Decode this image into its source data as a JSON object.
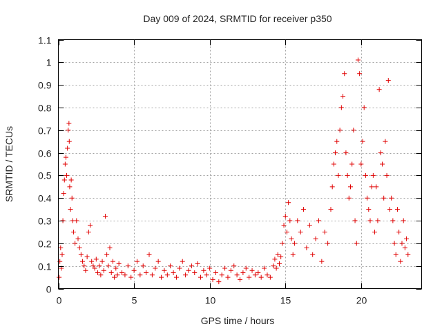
{
  "chart_data": {
    "type": "scatter",
    "title": "Day 009 of 2024, SRMTID for receiver p350",
    "xlabel": "GPS time / hours",
    "ylabel": "SRMTID / TECUs",
    "xlim": [
      0,
      24
    ],
    "ylim": [
      0,
      1.1
    ],
    "xticks": [
      0,
      5,
      10,
      15,
      20
    ],
    "xtick_labels": [
      "0",
      "5",
      "10",
      "15",
      "20"
    ],
    "yticks": [
      0,
      0.1,
      0.2,
      0.3,
      0.4,
      0.5,
      0.6,
      0.7,
      0.8,
      0.9,
      1.0,
      1.1
    ],
    "ytick_labels": [
      "0",
      "0.1",
      "0.2",
      "0.3",
      "0.4",
      "0.5",
      "0.6",
      "0.7",
      "0.8",
      "0.9",
      "1",
      "1.1"
    ],
    "grid": true,
    "marker": "+",
    "series_color": "#e00000",
    "series": [
      {
        "name": "p350",
        "points": [
          [
            0.05,
            0.05
          ],
          [
            0.1,
            0.12
          ],
          [
            0.15,
            0.18
          ],
          [
            0.2,
            0.09
          ],
          [
            0.25,
            0.15
          ],
          [
            0.3,
            0.3
          ],
          [
            0.35,
            0.42
          ],
          [
            0.4,
            0.48
          ],
          [
            0.45,
            0.55
          ],
          [
            0.5,
            0.58
          ],
          [
            0.55,
            0.5
          ],
          [
            0.6,
            0.62
          ],
          [
            0.65,
            0.7
          ],
          [
            0.7,
            0.73
          ],
          [
            0.72,
            0.65
          ],
          [
            0.75,
            0.45
          ],
          [
            0.8,
            0.35
          ],
          [
            0.85,
            0.48
          ],
          [
            0.9,
            0.4
          ],
          [
            0.95,
            0.3
          ],
          [
            1.0,
            0.25
          ],
          [
            1.1,
            0.2
          ],
          [
            1.2,
            0.3
          ],
          [
            1.3,
            0.22
          ],
          [
            1.4,
            0.18
          ],
          [
            1.5,
            0.15
          ],
          [
            1.6,
            0.12
          ],
          [
            1.7,
            0.1
          ],
          [
            1.8,
            0.08
          ],
          [
            1.9,
            0.14
          ],
          [
            2.0,
            0.25
          ],
          [
            2.1,
            0.28
          ],
          [
            2.2,
            0.12
          ],
          [
            2.3,
            0.1
          ],
          [
            2.4,
            0.09
          ],
          [
            2.5,
            0.13
          ],
          [
            2.6,
            0.07
          ],
          [
            2.7,
            0.1
          ],
          [
            2.8,
            0.06
          ],
          [
            2.9,
            0.12
          ],
          [
            3.0,
            0.08
          ],
          [
            3.1,
            0.32
          ],
          [
            3.2,
            0.15
          ],
          [
            3.3,
            0.1
          ],
          [
            3.4,
            0.18
          ],
          [
            3.5,
            0.07
          ],
          [
            3.6,
            0.12
          ],
          [
            3.7,
            0.05
          ],
          [
            3.8,
            0.09
          ],
          [
            3.9,
            0.06
          ],
          [
            4.0,
            0.11
          ],
          [
            4.2,
            0.07
          ],
          [
            4.4,
            0.06
          ],
          [
            4.6,
            0.1
          ],
          [
            4.8,
            0.05
          ],
          [
            5.0,
            0.08
          ],
          [
            5.2,
            0.12
          ],
          [
            5.4,
            0.06
          ],
          [
            5.6,
            0.1
          ],
          [
            5.8,
            0.07
          ],
          [
            6.0,
            0.15
          ],
          [
            6.2,
            0.06
          ],
          [
            6.4,
            0.09
          ],
          [
            6.6,
            0.12
          ],
          [
            6.8,
            0.05
          ],
          [
            7.0,
            0.08
          ],
          [
            7.2,
            0.06
          ],
          [
            7.4,
            0.1
          ],
          [
            7.6,
            0.07
          ],
          [
            7.8,
            0.05
          ],
          [
            8.0,
            0.09
          ],
          [
            8.2,
            0.12
          ],
          [
            8.4,
            0.06
          ],
          [
            8.6,
            0.08
          ],
          [
            8.8,
            0.1
          ],
          [
            9.0,
            0.07
          ],
          [
            9.2,
            0.11
          ],
          [
            9.4,
            0.05
          ],
          [
            9.6,
            0.08
          ],
          [
            9.8,
            0.06
          ],
          [
            10.0,
            0.09
          ],
          [
            10.2,
            0.04
          ],
          [
            10.4,
            0.07
          ],
          [
            10.6,
            0.03
          ],
          [
            10.8,
            0.06
          ],
          [
            11.0,
            0.09
          ],
          [
            11.2,
            0.05
          ],
          [
            11.4,
            0.08
          ],
          [
            11.6,
            0.1
          ],
          [
            11.8,
            0.06
          ],
          [
            12.0,
            0.04
          ],
          [
            12.2,
            0.07
          ],
          [
            12.4,
            0.09
          ],
          [
            12.6,
            0.05
          ],
          [
            12.8,
            0.08
          ],
          [
            13.0,
            0.06
          ],
          [
            13.2,
            0.07
          ],
          [
            13.4,
            0.05
          ],
          [
            13.6,
            0.09
          ],
          [
            13.8,
            0.06
          ],
          [
            14.0,
            0.05
          ],
          [
            14.2,
            0.1
          ],
          [
            14.3,
            0.13
          ],
          [
            14.4,
            0.09
          ],
          [
            14.5,
            0.15
          ],
          [
            14.6,
            0.11
          ],
          [
            14.7,
            0.14
          ],
          [
            14.8,
            0.2
          ],
          [
            14.9,
            0.28
          ],
          [
            15.0,
            0.32
          ],
          [
            15.1,
            0.25
          ],
          [
            15.2,
            0.38
          ],
          [
            15.3,
            0.3
          ],
          [
            15.4,
            0.22
          ],
          [
            15.5,
            0.15
          ],
          [
            15.6,
            0.2
          ],
          [
            15.8,
            0.3
          ],
          [
            16.0,
            0.25
          ],
          [
            16.2,
            0.35
          ],
          [
            16.4,
            0.18
          ],
          [
            16.6,
            0.28
          ],
          [
            16.8,
            0.15
          ],
          [
            17.0,
            0.22
          ],
          [
            17.2,
            0.3
          ],
          [
            17.4,
            0.12
          ],
          [
            17.6,
            0.25
          ],
          [
            17.8,
            0.2
          ],
          [
            18.0,
            0.35
          ],
          [
            18.1,
            0.45
          ],
          [
            18.2,
            0.55
          ],
          [
            18.3,
            0.6
          ],
          [
            18.4,
            0.65
          ],
          [
            18.5,
            0.5
          ],
          [
            18.6,
            0.7
          ],
          [
            18.7,
            0.8
          ],
          [
            18.8,
            0.85
          ],
          [
            18.9,
            0.95
          ],
          [
            19.0,
            0.6
          ],
          [
            19.1,
            0.5
          ],
          [
            19.2,
            0.4
          ],
          [
            19.3,
            0.45
          ],
          [
            19.4,
            0.55
          ],
          [
            19.5,
            0.7
          ],
          [
            19.6,
            0.3
          ],
          [
            19.7,
            0.2
          ],
          [
            19.8,
            1.01
          ],
          [
            19.9,
            0.95
          ],
          [
            20.0,
            0.55
          ],
          [
            20.1,
            0.65
          ],
          [
            20.2,
            0.8
          ],
          [
            20.3,
            0.5
          ],
          [
            20.4,
            0.4
          ],
          [
            20.5,
            0.35
          ],
          [
            20.6,
            0.3
          ],
          [
            20.7,
            0.45
          ],
          [
            20.8,
            0.5
          ],
          [
            20.9,
            0.25
          ],
          [
            21.0,
            0.45
          ],
          [
            21.1,
            0.3
          ],
          [
            21.2,
            0.88
          ],
          [
            21.3,
            0.6
          ],
          [
            21.4,
            0.55
          ],
          [
            21.5,
            0.4
          ],
          [
            21.6,
            0.65
          ],
          [
            21.7,
            0.5
          ],
          [
            21.8,
            0.92
          ],
          [
            21.9,
            0.35
          ],
          [
            22.0,
            0.4
          ],
          [
            22.1,
            0.3
          ],
          [
            22.2,
            0.2
          ],
          [
            22.3,
            0.15
          ],
          [
            22.4,
            0.35
          ],
          [
            22.5,
            0.25
          ],
          [
            22.6,
            0.12
          ],
          [
            22.7,
            0.2
          ],
          [
            22.8,
            0.3
          ],
          [
            22.9,
            0.18
          ],
          [
            23.0,
            0.22
          ],
          [
            23.1,
            0.15
          ]
        ]
      }
    ]
  }
}
